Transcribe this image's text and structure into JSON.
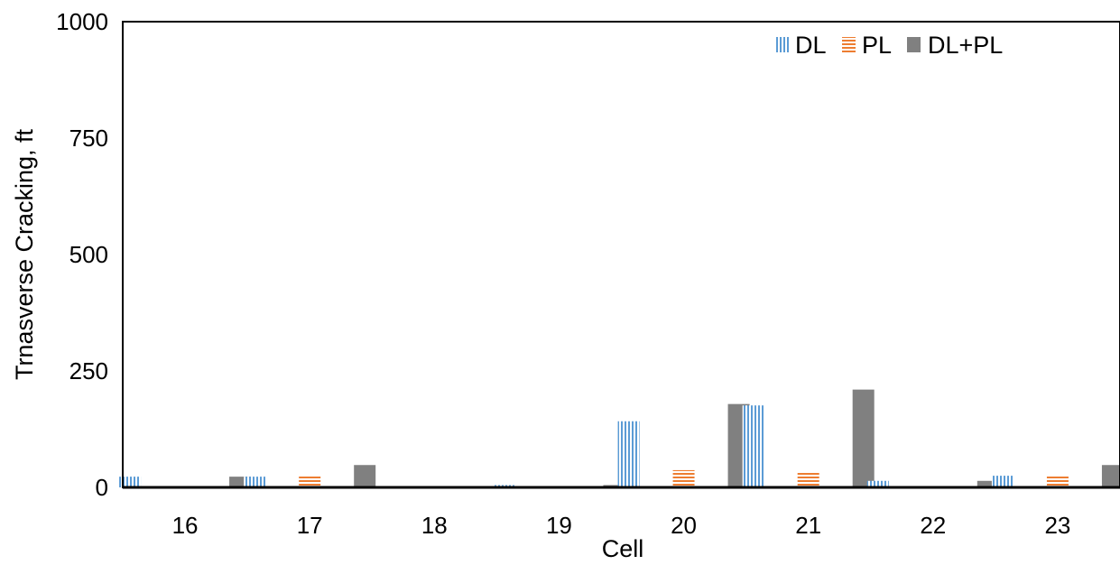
{
  "chart_data": {
    "type": "bar",
    "title": "",
    "xlabel": "Cell",
    "ylabel": "Trnasverse Cracking, ft",
    "categories": [
      "16",
      "17",
      "18",
      "19",
      "20",
      "21",
      "22",
      "23"
    ],
    "series": [
      {
        "name": "DL",
        "values": [
          23,
          23,
          0,
          5,
          142,
          176,
          14,
          25
        ],
        "color": "#5b9bd5",
        "pattern": "vertical-stripes"
      },
      {
        "name": "PL",
        "values": [
          0,
          24,
          0,
          0,
          37,
          33,
          0,
          24
        ],
        "color": "#ed7d31",
        "pattern": "horizontal-stripes"
      },
      {
        "name": "DL+PL",
        "values": [
          23,
          48,
          0,
          5,
          179,
          210,
          14,
          48
        ],
        "color": "#808080",
        "pattern": "solid"
      }
    ],
    "ylim": [
      0,
      1000
    ],
    "yticks": [
      "0",
      "250",
      "500",
      "750",
      "1000"
    ],
    "grid": false,
    "legend_position": "top-right"
  }
}
